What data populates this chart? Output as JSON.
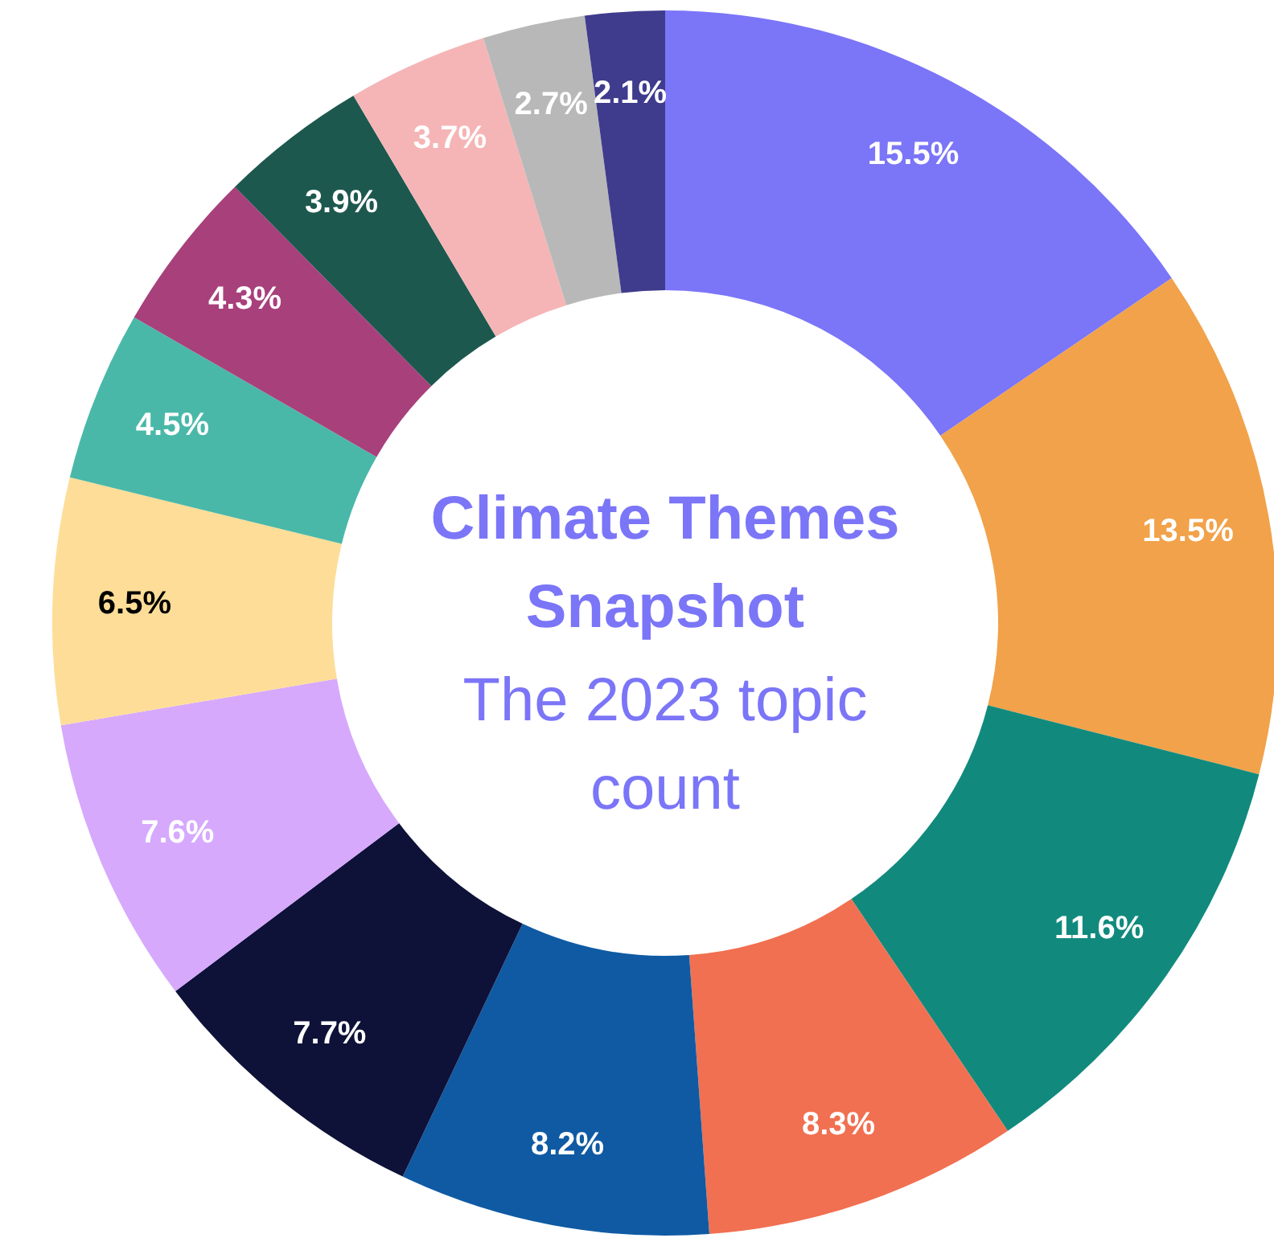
{
  "chart_data": {
    "type": "donut",
    "title": "Climate Themes Snapshot",
    "subtitle": "The 2023 topic count",
    "categories": [
      null,
      null,
      null,
      null,
      null,
      null,
      null,
      null,
      null,
      null,
      null,
      null,
      null,
      null
    ],
    "values": [
      15.5,
      13.5,
      11.6,
      8.3,
      8.2,
      7.7,
      7.6,
      6.5,
      4.5,
      4.3,
      3.9,
      3.7,
      2.7,
      2.1
    ],
    "colors": [
      "#7b75f8",
      "#f1a24a",
      "#118a7d",
      "#f07051",
      "#0f5aa3",
      "#0e1238",
      "#d6a9fd",
      "#fddd98",
      "#4ab8a8",
      "#a8407c",
      "#1d584f",
      "#f5b5b6",
      "#b8b8b8",
      "#3f3c8e"
    ],
    "value_labels": [
      "15.5%",
      "13.5%",
      "11.6%",
      "8.3%",
      "8.2%",
      "7.7%",
      "7.6%",
      "6.5%",
      "4.5%",
      "4.3%",
      "3.9%",
      "3.7%",
      "2.7%",
      "2.1%"
    ]
  }
}
